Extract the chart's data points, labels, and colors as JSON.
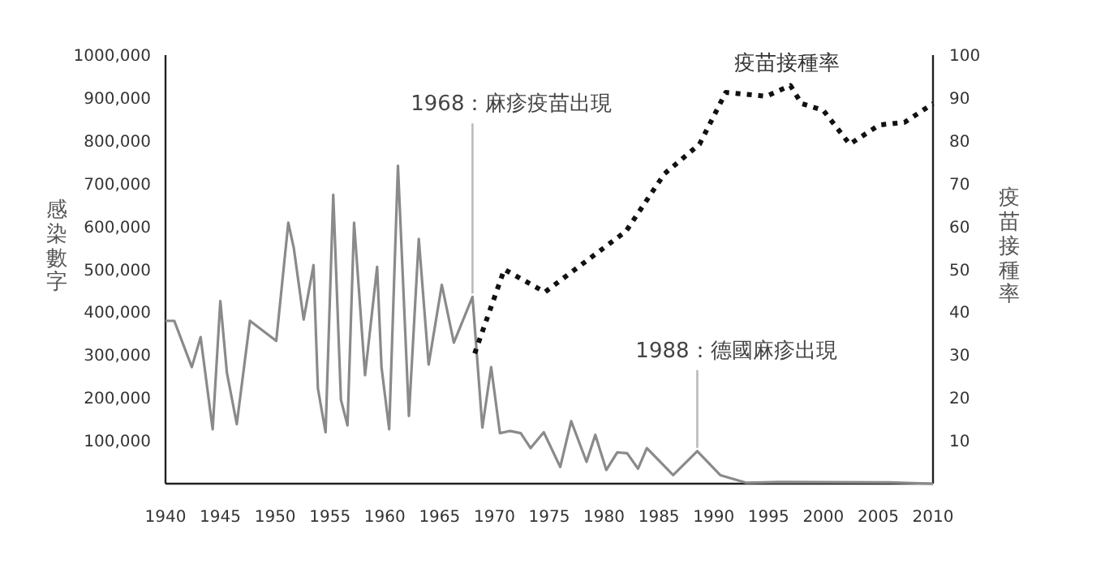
{
  "chart_data": {
    "type": "line",
    "xlabel": null,
    "ylabel": "感染數字",
    "y2label": "疫苗接種率",
    "xlim": [
      1940,
      2010
    ],
    "xticks": [
      1940,
      1945,
      1950,
      1955,
      1960,
      1965,
      1970,
      1975,
      1980,
      1985,
      1990,
      1995,
      2000,
      2005,
      2010
    ],
    "ylim": [
      0,
      1000000
    ],
    "yticks": [
      {
        "value": 100000,
        "label": "100,000"
      },
      {
        "value": 200000,
        "label": "200,000"
      },
      {
        "value": 300000,
        "label": "300,000"
      },
      {
        "value": 400000,
        "label": "400,000"
      },
      {
        "value": 500000,
        "label": "500,000"
      },
      {
        "value": 600000,
        "label": "600,000"
      },
      {
        "value": 700000,
        "label": "700,000"
      },
      {
        "value": 800000,
        "label": "800,000"
      },
      {
        "value": 900000,
        "label": "900,000"
      },
      {
        "value": 1000000,
        "label": "1000,000"
      }
    ],
    "y2lim": [
      0,
      100
    ],
    "y2ticks": [
      10,
      20,
      30,
      40,
      50,
      60,
      70,
      80,
      90,
      100
    ],
    "grid": false,
    "series": [
      {
        "color": "#8a8a8a",
        "line_style": "solid",
        "x": [
          1940,
          1940.8,
          1942.4,
          1943.2,
          1944.3,
          1945,
          1945.6,
          1946.5,
          1947.7,
          1950.1,
          1951.2,
          1951.7,
          1952.6,
          1953.5,
          1953.9,
          1954.6,
          1955.3,
          1956,
          1956.6,
          1957.2,
          1958.2,
          1959.3,
          1959.7,
          1960.4,
          1961.2,
          1962.2,
          1963.1,
          1964,
          1965.2,
          1966.3,
          1968,
          1968.9,
          1969.7,
          1970.5,
          1971.4,
          1972.4,
          1973.3,
          1974.5,
          1976,
          1977,
          1978.4,
          1979.2,
          1980.2,
          1981.2,
          1982.1,
          1983.1,
          1983.9,
          1986.3,
          1988.5,
          1990.6,
          1993,
          1996,
          2006,
          2010
        ],
        "values": [
          380000,
          380000,
          272000,
          342000,
          127000,
          426000,
          259000,
          139000,
          380000,
          333000,
          609000,
          550000,
          383000,
          510000,
          222000,
          120000,
          674000,
          196000,
          136000,
          609000,
          253000,
          506000,
          272000,
          127000,
          742000,
          158000,
          571000,
          278000,
          464000,
          329000,
          436000,
          131000,
          272000,
          118000,
          123000,
          118000,
          83000,
          120000,
          39000,
          146000,
          51000,
          114000,
          32000,
          73000,
          71000,
          35000,
          83000,
          20000,
          76000,
          20000,
          2000,
          4000,
          3000,
          0
        ]
      },
      {
        "name": "疫苗接種率",
        "color": "#111111",
        "line_style": "dotted",
        "axis": "y2",
        "x": [
          1968.2,
          1970.9,
          1974.6,
          1982,
          1985.5,
          1988.7,
          1991.1,
          1994.8,
          1997,
          1998,
          2000,
          2002.4,
          2005.1,
          2007.4,
          2010
        ],
        "values": [
          30.4,
          50,
          44.7,
          58.9,
          72.3,
          79.2,
          91.3,
          90.4,
          92.9,
          88.7,
          87.1,
          79.2,
          83.7,
          84.3,
          88.7
        ]
      }
    ],
    "annotations": [
      {
        "text": "1968：麻疹疫苗出現",
        "x": 1968,
        "y": 436000
      },
      {
        "text": "1988：德國麻疹出現",
        "x": 1988.5,
        "y": 76000
      }
    ]
  }
}
